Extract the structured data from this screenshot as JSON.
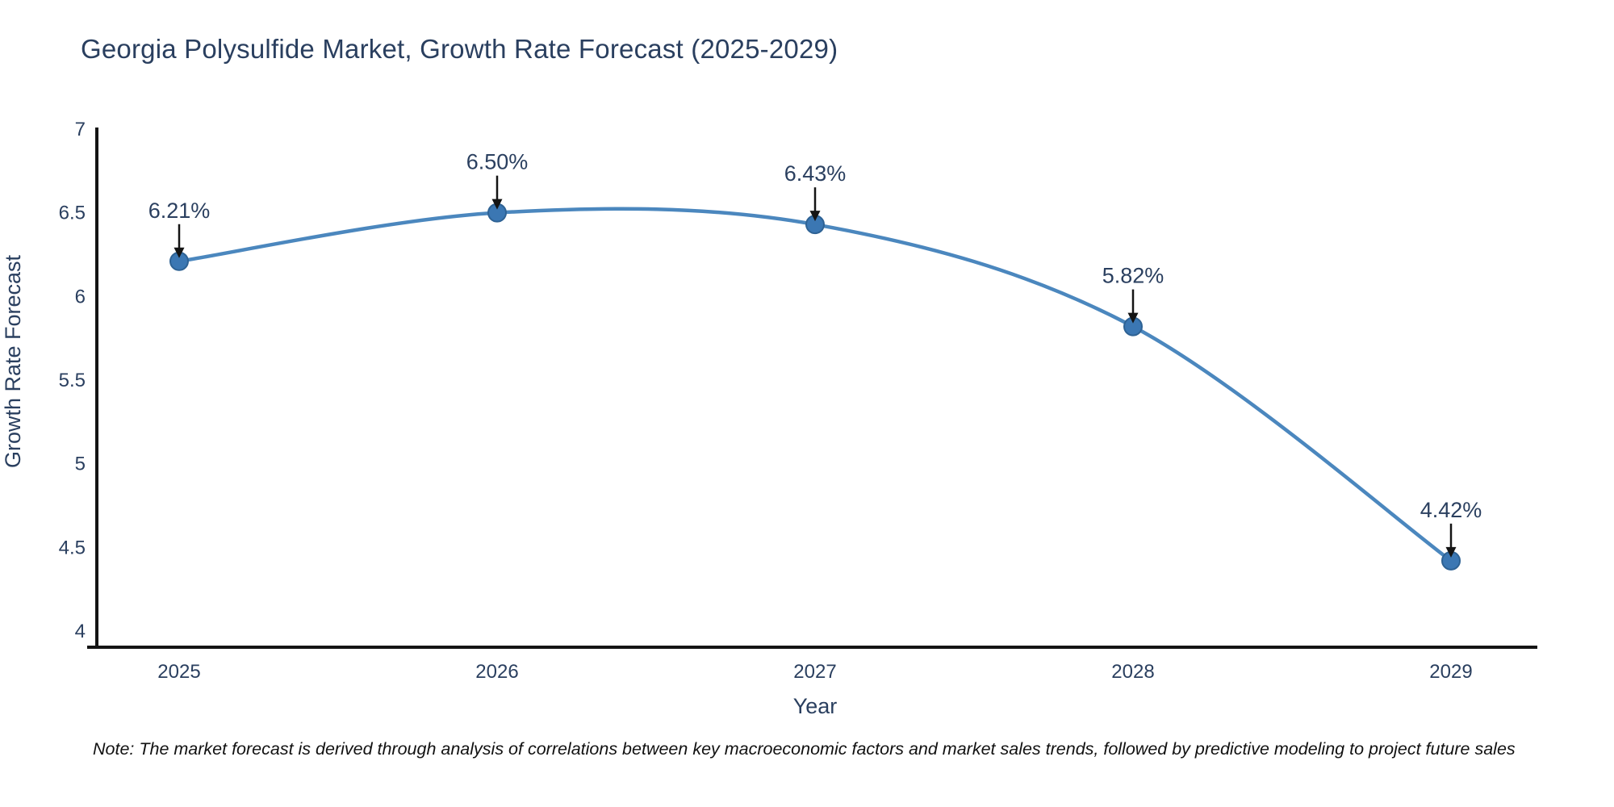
{
  "chart_data": {
    "type": "line",
    "title": "Georgia Polysulfide Market, Growth Rate Forecast (2025-2029)",
    "xlabel": "Year",
    "ylabel": "Growth Rate Forecast",
    "categories": [
      "2025",
      "2026",
      "2027",
      "2028",
      "2029"
    ],
    "values": [
      6.21,
      6.5,
      6.43,
      5.82,
      4.42
    ],
    "point_labels": [
      "6.21%",
      "6.50%",
      "6.43%",
      "5.82%",
      "4.42%"
    ],
    "y_tick_labels": [
      "7",
      "6.5",
      "6",
      "5.5",
      "5",
      "4.5",
      "4"
    ],
    "y_tick_values": [
      7,
      6.5,
      6,
      5.5,
      5,
      4.5,
      4
    ],
    "ylim": [
      3.9,
      7.0
    ],
    "grid": false,
    "legend_position": "none",
    "line_shape": "spline",
    "note": "Note: The market forecast is derived through analysis of correlations between key macroeconomic factors and market sales trends, followed by predictive modeling to project future sales",
    "colors": {
      "line": "#4b87be",
      "marker_fill": "#3b77b3",
      "marker_stroke": "#2e6294",
      "axis_line": "#141414",
      "text": "#2a3f5f",
      "annotation_arrow": "#141414",
      "note_text": "#111111",
      "background": "#ffffff"
    }
  }
}
